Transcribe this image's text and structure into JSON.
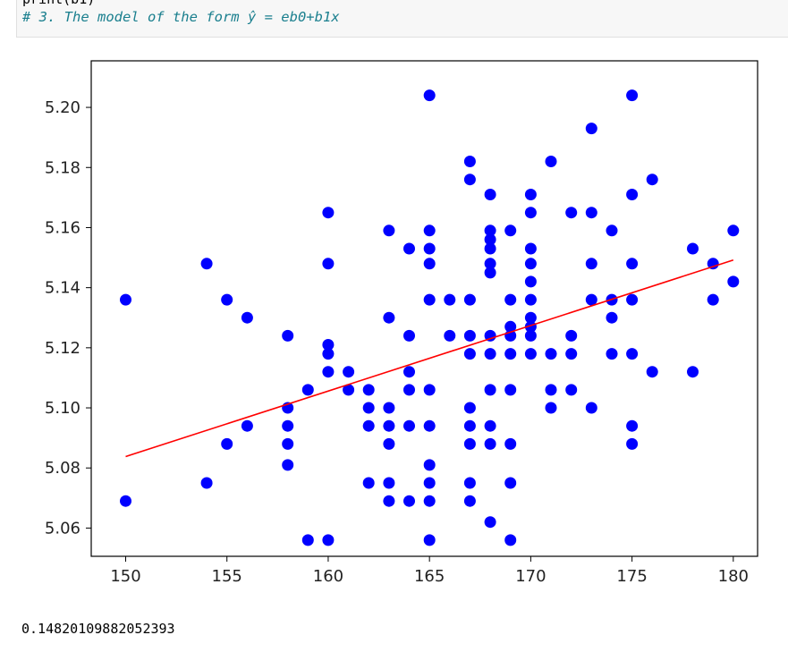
{
  "cell": {
    "previous_line": "print(b1)",
    "comment": "# 3. The model of the form ŷ = eb0+b1x"
  },
  "output": {
    "value": "0.14820109882052393"
  },
  "chart_data": {
    "type": "scatter",
    "xlim": [
      148.3,
      181.2
    ],
    "ylim": [
      5.0506,
      5.2155
    ],
    "x_ticks": [
      150,
      155,
      160,
      165,
      170,
      175,
      180
    ],
    "y_ticks": [
      5.06,
      5.08,
      5.1,
      5.12,
      5.14,
      5.16,
      5.18,
      5.2
    ],
    "y_tick_labels": [
      "5.06",
      "5.08",
      "5.10",
      "5.12",
      "5.14",
      "5.16",
      "5.18",
      "5.20"
    ],
    "grid": false,
    "colors": {
      "points": "#0000ff",
      "line": "#ff0000",
      "axes": "#000000"
    },
    "points": [
      [
        150,
        5.136
      ],
      [
        150,
        5.069
      ],
      [
        154,
        5.148
      ],
      [
        154,
        5.075
      ],
      [
        155,
        5.136
      ],
      [
        155,
        5.088
      ],
      [
        156,
        5.13
      ],
      [
        156,
        5.094
      ],
      [
        158,
        5.124
      ],
      [
        158,
        5.1
      ],
      [
        158,
        5.094
      ],
      [
        158,
        5.088
      ],
      [
        158,
        5.081
      ],
      [
        159,
        5.106
      ],
      [
        159,
        5.056
      ],
      [
        160,
        5.165
      ],
      [
        160,
        5.148
      ],
      [
        160,
        5.121
      ],
      [
        160,
        5.118
      ],
      [
        160,
        5.112
      ],
      [
        160,
        5.056
      ],
      [
        161,
        5.112
      ],
      [
        161,
        5.106
      ],
      [
        162,
        5.106
      ],
      [
        162,
        5.1
      ],
      [
        162,
        5.094
      ],
      [
        162,
        5.075
      ],
      [
        163,
        5.159
      ],
      [
        163,
        5.13
      ],
      [
        163,
        5.1
      ],
      [
        163,
        5.094
      ],
      [
        163,
        5.088
      ],
      [
        163,
        5.075
      ],
      [
        163,
        5.069
      ],
      [
        164,
        5.153
      ],
      [
        164,
        5.124
      ],
      [
        164,
        5.112
      ],
      [
        164,
        5.106
      ],
      [
        164,
        5.094
      ],
      [
        164,
        5.069
      ],
      [
        165,
        5.204
      ],
      [
        165,
        5.159
      ],
      [
        165,
        5.153
      ],
      [
        165,
        5.148
      ],
      [
        165,
        5.136
      ],
      [
        165,
        5.106
      ],
      [
        165,
        5.094
      ],
      [
        165,
        5.081
      ],
      [
        165,
        5.075
      ],
      [
        165,
        5.069
      ],
      [
        165,
        5.056
      ],
      [
        166,
        5.136
      ],
      [
        166,
        5.124
      ],
      [
        167,
        5.182
      ],
      [
        167,
        5.176
      ],
      [
        167,
        5.136
      ],
      [
        167,
        5.124
      ],
      [
        167,
        5.118
      ],
      [
        167,
        5.1
      ],
      [
        167,
        5.094
      ],
      [
        167,
        5.088
      ],
      [
        167,
        5.075
      ],
      [
        167,
        5.069
      ],
      [
        168,
        5.171
      ],
      [
        168,
        5.159
      ],
      [
        168,
        5.156
      ],
      [
        168,
        5.153
      ],
      [
        168,
        5.148
      ],
      [
        168,
        5.145
      ],
      [
        168,
        5.124
      ],
      [
        168,
        5.118
      ],
      [
        168,
        5.106
      ],
      [
        168,
        5.094
      ],
      [
        168,
        5.088
      ],
      [
        168,
        5.062
      ],
      [
        169,
        5.159
      ],
      [
        169,
        5.136
      ],
      [
        169,
        5.127
      ],
      [
        169,
        5.124
      ],
      [
        169,
        5.118
      ],
      [
        169,
        5.106
      ],
      [
        169,
        5.088
      ],
      [
        169,
        5.075
      ],
      [
        169,
        5.056
      ],
      [
        170,
        5.171
      ],
      [
        170,
        5.165
      ],
      [
        170,
        5.153
      ],
      [
        170,
        5.148
      ],
      [
        170,
        5.142
      ],
      [
        170,
        5.136
      ],
      [
        170,
        5.13
      ],
      [
        170,
        5.127
      ],
      [
        170,
        5.124
      ],
      [
        170,
        5.118
      ],
      [
        171,
        5.182
      ],
      [
        171,
        5.118
      ],
      [
        171,
        5.106
      ],
      [
        171,
        5.1
      ],
      [
        172,
        5.165
      ],
      [
        172,
        5.124
      ],
      [
        172,
        5.118
      ],
      [
        172,
        5.106
      ],
      [
        173,
        5.193
      ],
      [
        173,
        5.165
      ],
      [
        173,
        5.148
      ],
      [
        173,
        5.136
      ],
      [
        173,
        5.1
      ],
      [
        174,
        5.159
      ],
      [
        174,
        5.136
      ],
      [
        174,
        5.13
      ],
      [
        174,
        5.118
      ],
      [
        175,
        5.204
      ],
      [
        175,
        5.171
      ],
      [
        175,
        5.148
      ],
      [
        175,
        5.136
      ],
      [
        175,
        5.118
      ],
      [
        175,
        5.094
      ],
      [
        175,
        5.088
      ],
      [
        176,
        5.176
      ],
      [
        176,
        5.112
      ],
      [
        178,
        5.153
      ],
      [
        178,
        5.112
      ],
      [
        179,
        5.148
      ],
      [
        179,
        5.136
      ],
      [
        180,
        5.159
      ],
      [
        180,
        5.142
      ]
    ],
    "regression_line": {
      "x": [
        150,
        180
      ],
      "y": [
        5.0838,
        5.1492
      ]
    }
  }
}
